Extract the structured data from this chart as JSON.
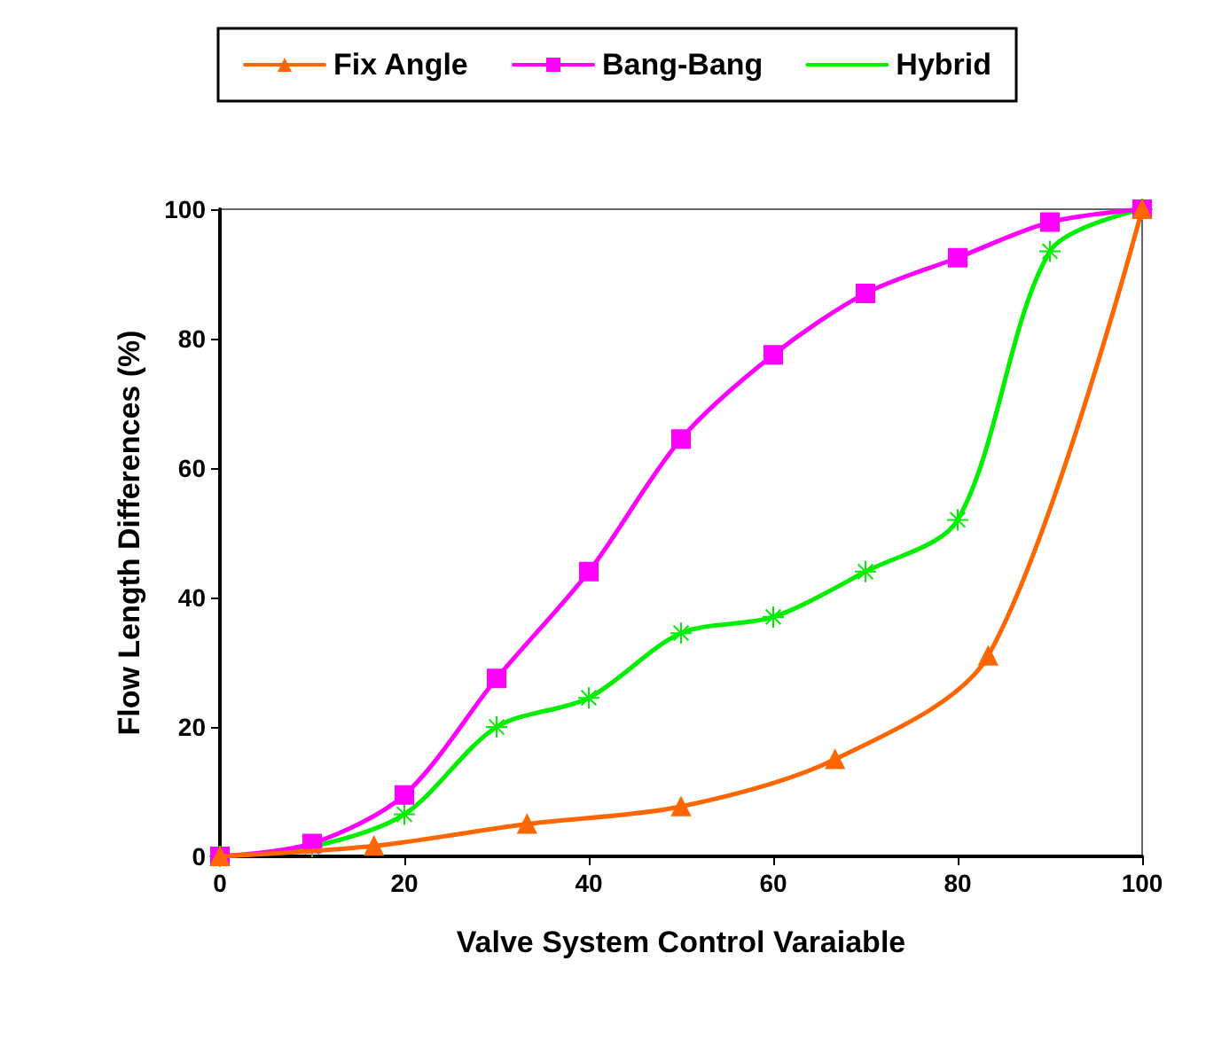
{
  "chart_data": {
    "type": "line",
    "xlabel": "Valve System Control Varaiable",
    "ylabel": "Flow Length Differences (%)",
    "xlim": [
      0,
      100
    ],
    "xticks": [
      0,
      20,
      40,
      60,
      80,
      100
    ],
    "ylim": [
      0,
      100
    ],
    "yticks": [
      0,
      20,
      40,
      60,
      80,
      100
    ],
    "grid": false,
    "legend": "top",
    "series": [
      {
        "name": "Fix Angle",
        "color": "#ff6600",
        "marker": "triangle",
        "x": [
          0,
          16.7,
          33.3,
          50,
          66.7,
          83.3,
          100
        ],
        "values": [
          0,
          1.6,
          5,
          7.7,
          15,
          31,
          100
        ]
      },
      {
        "name": "Bang-Bang",
        "color": "#ff00ff",
        "marker": "square",
        "x": [
          0,
          10,
          20,
          30,
          40,
          50,
          60,
          70,
          80,
          90,
          100
        ],
        "values": [
          0,
          2,
          9.5,
          27.5,
          44,
          64.5,
          77.5,
          87,
          92.5,
          98,
          100
        ]
      },
      {
        "name": "Hybrid",
        "color": "#00ee00",
        "marker": "cross",
        "x": [
          0,
          10,
          20,
          30,
          40,
          50,
          60,
          70,
          80,
          90,
          100
        ],
        "values": [
          0,
          1.5,
          6.5,
          20,
          24.5,
          34.5,
          37,
          44,
          52,
          93.5,
          100
        ]
      }
    ]
  }
}
